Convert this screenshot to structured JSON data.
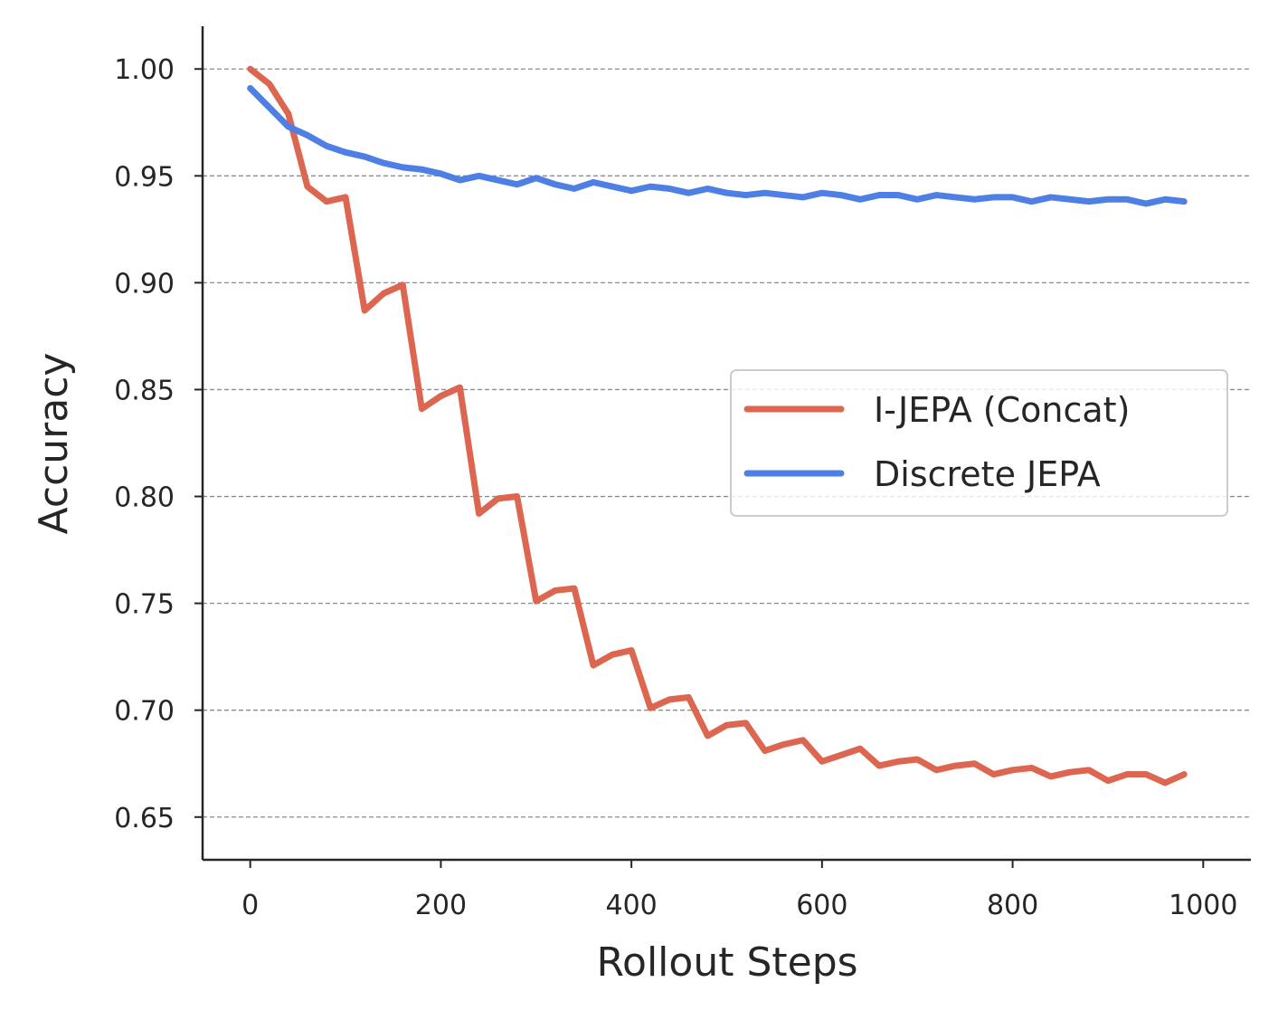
{
  "chart_data": {
    "type": "line",
    "xlabel": "Rollout Steps",
    "ylabel": "Accuracy",
    "xlim": [
      -50,
      1050
    ],
    "ylim": [
      0.63,
      1.02
    ],
    "xticks": [
      0,
      200,
      400,
      600,
      800,
      1000
    ],
    "xtick_labels": [
      "0",
      "200",
      "400",
      "600",
      "800",
      "1000"
    ],
    "yticks": [
      0.65,
      0.7,
      0.75,
      0.8,
      0.85,
      0.9,
      0.95,
      1.0
    ],
    "ytick_labels": [
      "0.65",
      "0.70",
      "0.75",
      "0.80",
      "0.85",
      "0.90",
      "0.95",
      "1.00"
    ],
    "grid": "horizontal dashed",
    "legend_position": "center-right",
    "x": [
      0,
      20,
      40,
      60,
      80,
      100,
      120,
      140,
      160,
      180,
      200,
      220,
      240,
      260,
      280,
      300,
      320,
      340,
      360,
      380,
      400,
      420,
      440,
      460,
      480,
      500,
      520,
      540,
      560,
      580,
      600,
      620,
      640,
      660,
      680,
      700,
      720,
      740,
      760,
      780,
      800,
      820,
      840,
      860,
      880,
      900,
      920,
      940,
      960,
      980
    ],
    "series": [
      {
        "name": "I-JEPA (Concat)",
        "color": "#dd6650",
        "values": [
          1.0,
          0.993,
          0.979,
          0.945,
          0.938,
          0.94,
          0.887,
          0.895,
          0.899,
          0.841,
          0.847,
          0.851,
          0.792,
          0.799,
          0.8,
          0.751,
          0.756,
          0.757,
          0.721,
          0.726,
          0.728,
          0.701,
          0.705,
          0.706,
          0.688,
          0.693,
          0.694,
          0.681,
          0.684,
          0.686,
          0.676,
          0.679,
          0.682,
          0.674,
          0.676,
          0.677,
          0.672,
          0.674,
          0.675,
          0.67,
          0.672,
          0.673,
          0.669,
          0.671,
          0.672,
          0.667,
          0.67,
          0.67,
          0.666,
          0.67
        ]
      },
      {
        "name": "Discrete JEPA",
        "color": "#4e7fe4",
        "values": [
          0.991,
          0.982,
          0.973,
          0.969,
          0.964,
          0.961,
          0.959,
          0.956,
          0.954,
          0.953,
          0.951,
          0.948,
          0.95,
          0.948,
          0.946,
          0.949,
          0.946,
          0.944,
          0.947,
          0.945,
          0.943,
          0.945,
          0.944,
          0.942,
          0.944,
          0.942,
          0.941,
          0.942,
          0.941,
          0.94,
          0.942,
          0.941,
          0.939,
          0.941,
          0.941,
          0.939,
          0.941,
          0.94,
          0.939,
          0.94,
          0.94,
          0.938,
          0.94,
          0.939,
          0.938,
          0.939,
          0.939,
          0.937,
          0.939,
          0.938
        ]
      }
    ]
  }
}
